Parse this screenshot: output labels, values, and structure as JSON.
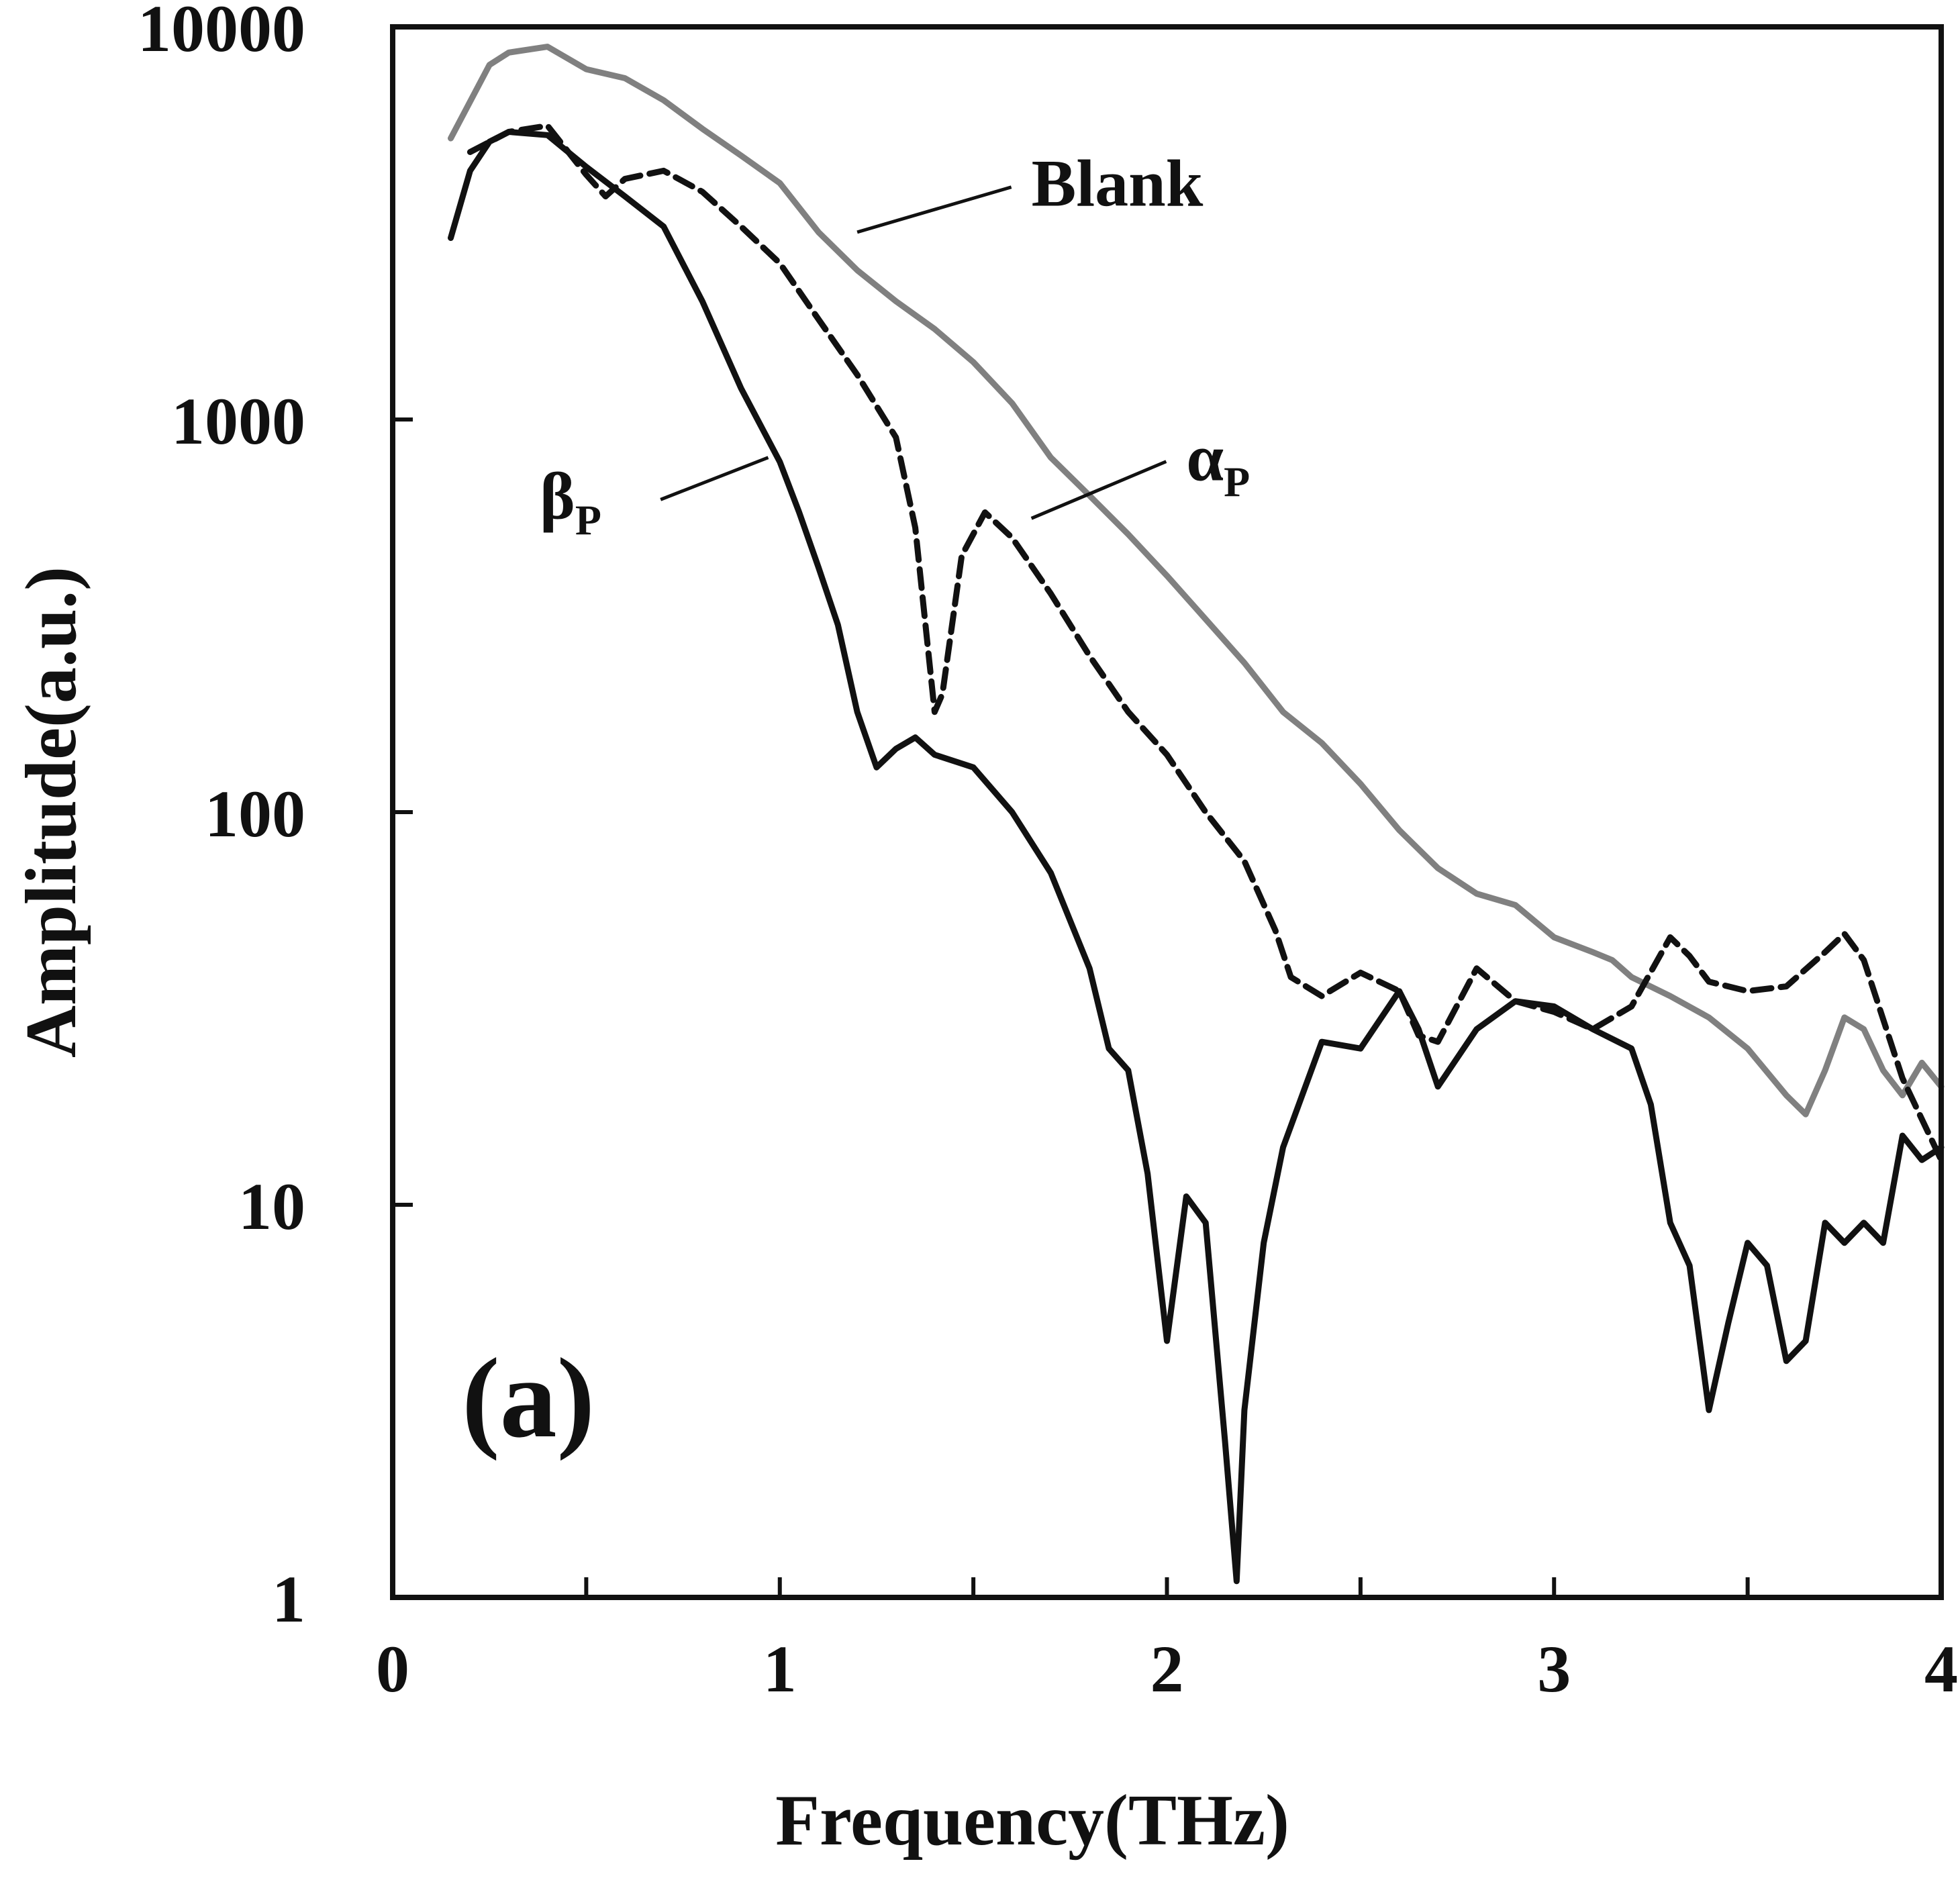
{
  "chart_data": {
    "type": "line",
    "xlabel": "Frequency(THz)",
    "ylabel": "Amplitude(a.u.)",
    "xlim": [
      0,
      4
    ],
    "ylim": [
      1,
      10000
    ],
    "yscale": "log",
    "grid": false,
    "panel_label": "(a)",
    "x_ticks": [
      "0",
      "1",
      "2",
      "3",
      "4"
    ],
    "y_ticks": [
      "1",
      "10",
      "100",
      "1000",
      "10000"
    ],
    "series": [
      {
        "name": "Blank",
        "color": "#808080",
        "style": "solid",
        "label_x": 1.65,
        "label_y": 3500,
        "leader_to": [
          1.2,
          3000
        ],
        "points": [
          [
            0.15,
            5200
          ],
          [
            0.25,
            8000
          ],
          [
            0.3,
            8600
          ],
          [
            0.4,
            8900
          ],
          [
            0.5,
            7800
          ],
          [
            0.6,
            7400
          ],
          [
            0.7,
            6500
          ],
          [
            0.8,
            5500
          ],
          [
            0.9,
            4700
          ],
          [
            1.0,
            4000
          ],
          [
            1.1,
            3000
          ],
          [
            1.2,
            2400
          ],
          [
            1.3,
            2000
          ],
          [
            1.4,
            1700
          ],
          [
            1.5,
            1400
          ],
          [
            1.6,
            1100
          ],
          [
            1.7,
            800
          ],
          [
            1.8,
            640
          ],
          [
            1.9,
            510
          ],
          [
            2.0,
            400
          ],
          [
            2.1,
            310
          ],
          [
            2.2,
            240
          ],
          [
            2.3,
            180
          ],
          [
            2.4,
            150
          ],
          [
            2.5,
            118
          ],
          [
            2.6,
            90
          ],
          [
            2.7,
            72
          ],
          [
            2.8,
            62
          ],
          [
            2.9,
            58
          ],
          [
            3.0,
            48
          ],
          [
            3.1,
            44
          ],
          [
            3.15,
            42
          ],
          [
            3.2,
            38
          ],
          [
            3.3,
            34
          ],
          [
            3.4,
            30
          ],
          [
            3.5,
            25
          ],
          [
            3.6,
            19
          ],
          [
            3.65,
            17
          ],
          [
            3.7,
            22
          ],
          [
            3.75,
            30
          ],
          [
            3.8,
            28
          ],
          [
            3.85,
            22
          ],
          [
            3.9,
            19
          ],
          [
            3.95,
            23
          ],
          [
            4.0,
            20
          ]
        ]
      },
      {
        "name": "α",
        "subscript": "P",
        "color": "#111111",
        "style": "dashed",
        "label_x": 2.05,
        "label_y": 700,
        "leader_to": [
          1.65,
          560
        ],
        "points": [
          [
            0.2,
            4800
          ],
          [
            0.3,
            5400
          ],
          [
            0.4,
            5600
          ],
          [
            0.5,
            4200
          ],
          [
            0.55,
            3700
          ],
          [
            0.6,
            4100
          ],
          [
            0.7,
            4300
          ],
          [
            0.8,
            3800
          ],
          [
            0.9,
            3100
          ],
          [
            1.0,
            2500
          ],
          [
            1.1,
            1800
          ],
          [
            1.2,
            1300
          ],
          [
            1.3,
            900
          ],
          [
            1.35,
            530
          ],
          [
            1.4,
            180
          ],
          [
            1.42,
            200
          ],
          [
            1.47,
            450
          ],
          [
            1.53,
            580
          ],
          [
            1.6,
            500
          ],
          [
            1.7,
            360
          ],
          [
            1.8,
            250
          ],
          [
            1.9,
            180
          ],
          [
            2.0,
            140
          ],
          [
            2.1,
            100
          ],
          [
            2.2,
            75
          ],
          [
            2.28,
            50
          ],
          [
            2.32,
            38
          ],
          [
            2.4,
            34
          ],
          [
            2.5,
            39
          ],
          [
            2.6,
            35
          ],
          [
            2.65,
            27
          ],
          [
            2.7,
            26
          ],
          [
            2.8,
            40
          ],
          [
            2.9,
            33
          ],
          [
            3.0,
            31
          ],
          [
            3.1,
            28
          ],
          [
            3.2,
            32
          ],
          [
            3.3,
            48
          ],
          [
            3.35,
            43
          ],
          [
            3.4,
            37
          ],
          [
            3.5,
            35
          ],
          [
            3.6,
            36
          ],
          [
            3.7,
            44
          ],
          [
            3.75,
            49
          ],
          [
            3.8,
            42
          ],
          [
            3.9,
            21
          ],
          [
            4.0,
            13
          ]
        ]
      },
      {
        "name": "β",
        "subscript": "P",
        "color": "#111111",
        "style": "solid",
        "label_x": 0.38,
        "label_y": 560,
        "leader_to": [
          0.97,
          800
        ],
        "points": [
          [
            0.15,
            2900
          ],
          [
            0.2,
            4300
          ],
          [
            0.25,
            5100
          ],
          [
            0.3,
            5400
          ],
          [
            0.4,
            5300
          ],
          [
            0.5,
            4400
          ],
          [
            0.6,
            3700
          ],
          [
            0.7,
            3100
          ],
          [
            0.8,
            2000
          ],
          [
            0.9,
            1200
          ],
          [
            1.0,
            780
          ],
          [
            1.05,
            580
          ],
          [
            1.1,
            420
          ],
          [
            1.15,
            300
          ],
          [
            1.2,
            180
          ],
          [
            1.25,
            130
          ],
          [
            1.3,
            145
          ],
          [
            1.35,
            155
          ],
          [
            1.4,
            140
          ],
          [
            1.5,
            130
          ],
          [
            1.6,
            100
          ],
          [
            1.7,
            70
          ],
          [
            1.8,
            40
          ],
          [
            1.85,
            25
          ],
          [
            1.9,
            22
          ],
          [
            1.95,
            12
          ],
          [
            2.0,
            4.5
          ],
          [
            2.05,
            10.5
          ],
          [
            2.1,
            9
          ],
          [
            2.15,
            2.5
          ],
          [
            2.18,
            1.1
          ],
          [
            2.2,
            3
          ],
          [
            2.25,
            8
          ],
          [
            2.3,
            14
          ],
          [
            2.4,
            26
          ],
          [
            2.5,
            25
          ],
          [
            2.6,
            35
          ],
          [
            2.65,
            28
          ],
          [
            2.7,
            20
          ],
          [
            2.8,
            28
          ],
          [
            2.9,
            33
          ],
          [
            3.0,
            32
          ],
          [
            3.1,
            28
          ],
          [
            3.2,
            25
          ],
          [
            3.25,
            18
          ],
          [
            3.3,
            9
          ],
          [
            3.35,
            7
          ],
          [
            3.4,
            3
          ],
          [
            3.45,
            5
          ],
          [
            3.5,
            8
          ],
          [
            3.55,
            7
          ],
          [
            3.6,
            4
          ],
          [
            3.65,
            4.5
          ],
          [
            3.7,
            9
          ],
          [
            3.75,
            8
          ],
          [
            3.8,
            9
          ],
          [
            3.85,
            8
          ],
          [
            3.9,
            15
          ],
          [
            3.95,
            13
          ],
          [
            4.0,
            14
          ]
        ]
      }
    ]
  }
}
